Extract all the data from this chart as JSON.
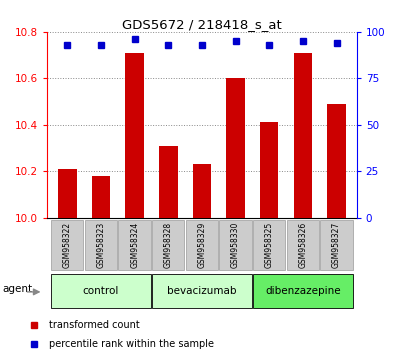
{
  "title": "GDS5672 / 218418_s_at",
  "samples": [
    "GSM958322",
    "GSM958323",
    "GSM958324",
    "GSM958328",
    "GSM958329",
    "GSM958330",
    "GSM958325",
    "GSM958326",
    "GSM958327"
  ],
  "bar_values": [
    10.21,
    10.18,
    10.71,
    10.31,
    10.23,
    10.6,
    10.41,
    10.71,
    10.49
  ],
  "percentile_values": [
    93,
    93,
    96,
    93,
    93,
    95,
    93,
    95,
    94
  ],
  "bar_color": "#cc0000",
  "dot_color": "#0000cc",
  "ylim_left": [
    10.0,
    10.8
  ],
  "ylim_right": [
    0,
    100
  ],
  "yticks_left": [
    10.0,
    10.2,
    10.4,
    10.6,
    10.8
  ],
  "yticks_right": [
    0,
    25,
    50,
    75,
    100
  ],
  "groups": [
    {
      "label": "control",
      "indices": [
        0,
        1,
        2
      ],
      "color": "#ccffcc"
    },
    {
      "label": "bevacizumab",
      "indices": [
        3,
        4,
        5
      ],
      "color": "#ccffcc"
    },
    {
      "label": "dibenzazepine",
      "indices": [
        6,
        7,
        8
      ],
      "color": "#66ee66"
    }
  ],
  "agent_label": "agent",
  "legend_items": [
    {
      "label": "transformed count",
      "color": "#cc0000"
    },
    {
      "label": "percentile rank within the sample",
      "color": "#0000cc"
    }
  ],
  "background_color": "#ffffff",
  "grid_color": "#888888",
  "sample_box_color": "#cccccc",
  "sample_box_edge": "#999999"
}
